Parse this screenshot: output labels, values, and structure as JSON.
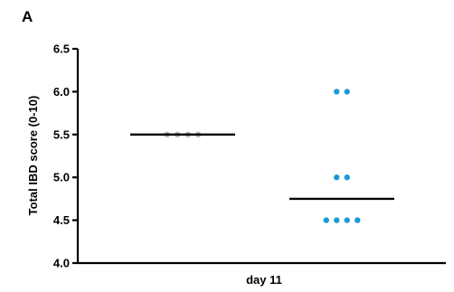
{
  "panel_label": "A",
  "chart_data": {
    "type": "scatter",
    "title": "",
    "ylabel": "Total IBD score (0-10)",
    "xlabel": "",
    "categories": [
      "day 11"
    ],
    "ylim": [
      4.0,
      6.5
    ],
    "yticks": [
      4.0,
      4.5,
      5.0,
      5.5,
      6.0,
      6.5
    ],
    "ytick_labels": [
      "4.0",
      "4.5",
      "5.0",
      "5.5",
      "6.0",
      "6.5"
    ],
    "grid": false,
    "groups": [
      {
        "color": "#b3b3b3",
        "points": [
          5.5,
          5.5,
          5.5,
          5.5
        ],
        "median": 5.5
      },
      {
        "color": "#1a9bd6",
        "points": [
          6.0,
          6.0,
          5.0,
          5.0,
          4.5,
          4.5,
          4.5,
          4.5
        ],
        "median": 4.75
      }
    ]
  }
}
